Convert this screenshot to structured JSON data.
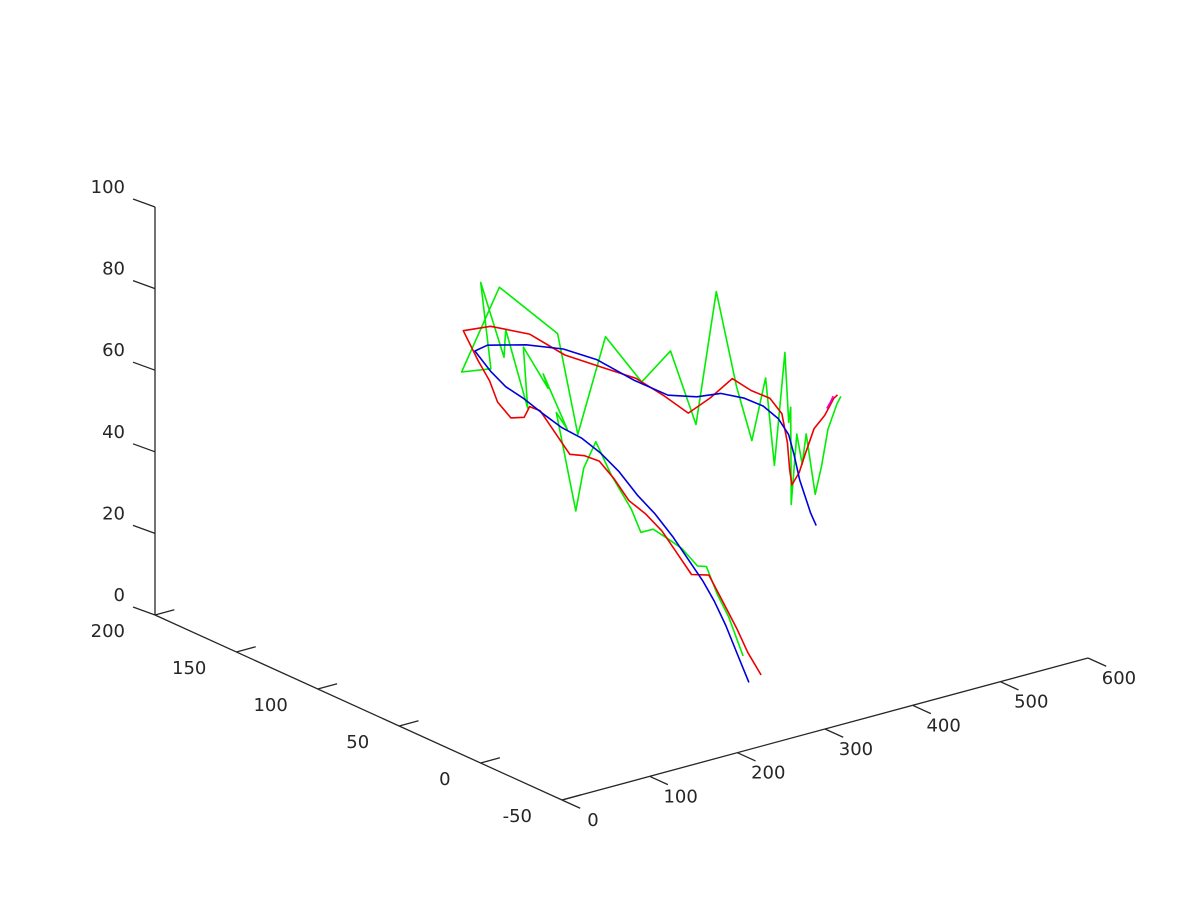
{
  "chart_data": {
    "type": "line",
    "dimensions": "3d",
    "grid": false,
    "legend": "none",
    "axes": {
      "x": {
        "range": [
          0,
          600
        ],
        "ticks": [
          0,
          100,
          200,
          300,
          400,
          500,
          600
        ]
      },
      "y": {
        "range": [
          -50,
          200
        ],
        "ticks": [
          -50,
          0,
          50,
          100,
          150,
          200
        ]
      },
      "z": {
        "range": [
          0,
          100
        ],
        "ticks": [
          0,
          20,
          40,
          60,
          80,
          100
        ]
      }
    },
    "series": [
      {
        "color": "#00ee00",
        "points": [
          [
            305,
            3,
            8
          ],
          [
            298,
            8,
            17
          ],
          [
            294,
            13,
            22
          ],
          [
            291,
            18,
            28
          ],
          [
            292,
            24,
            27
          ],
          [
            289,
            32,
            30
          ],
          [
            288,
            40,
            31
          ],
          [
            286,
            48,
            32
          ],
          [
            285,
            55,
            30
          ],
          [
            289,
            63,
            34
          ],
          [
            283,
            72,
            41
          ],
          [
            280,
            80,
            48
          ],
          [
            281,
            88,
            40
          ],
          [
            285,
            95,
            28
          ],
          [
            272,
            100,
            52
          ],
          [
            292,
            104,
            46
          ],
          [
            272,
            108,
            60
          ],
          [
            285,
            112,
            55
          ],
          [
            268,
            118,
            65
          ],
          [
            284,
            124,
            48
          ],
          [
            270,
            130,
            67
          ],
          [
            283,
            138,
            58
          ],
          [
            275,
            148,
            75
          ],
          [
            294,
            152,
            52
          ],
          [
            268,
            156,
            52
          ],
          [
            300,
            150,
            72
          ],
          [
            320,
            125,
            64
          ],
          [
            330,
            118,
            40
          ],
          [
            343,
            108,
            65
          ],
          [
            362,
            96,
            55
          ],
          [
            380,
            88,
            63
          ],
          [
            398,
            82,
            45
          ],
          [
            410,
            76,
            78
          ],
          [
            422,
            70,
            55
          ],
          [
            432,
            66,
            42
          ],
          [
            444,
            64,
            57
          ],
          [
            454,
            64,
            35
          ],
          [
            466,
            64,
            62
          ],
          [
            474,
            66,
            44
          ],
          [
            480,
            68,
            47
          ],
          [
            488,
            72,
            22
          ],
          [
            500,
            75,
            38
          ],
          [
            508,
            76,
            30
          ],
          [
            520,
            80,
            36
          ],
          [
            534,
            82,
            20
          ],
          [
            545,
            84,
            26
          ],
          [
            556,
            86,
            34
          ],
          [
            570,
            88,
            39
          ],
          [
            578,
            90,
            40
          ]
        ]
      },
      {
        "color": "#ee0000",
        "points": [
          [
            320,
            0,
            3
          ],
          [
            314,
            5,
            8
          ],
          [
            311,
            10,
            13
          ],
          [
            307,
            17,
            19
          ],
          [
            305,
            24,
            24
          ],
          [
            300,
            32,
            23
          ],
          [
            298,
            40,
            27
          ],
          [
            296,
            48,
            31
          ],
          [
            292,
            56,
            34
          ],
          [
            288,
            64,
            36
          ],
          [
            286,
            72,
            40
          ],
          [
            284,
            80,
            43
          ],
          [
            282,
            88,
            43
          ],
          [
            280,
            96,
            42
          ],
          [
            278,
            104,
            46
          ],
          [
            276,
            112,
            50
          ],
          [
            275,
            118,
            50
          ],
          [
            280,
            124,
            46
          ],
          [
            276,
            130,
            45
          ],
          [
            272,
            136,
            48
          ],
          [
            274,
            142,
            52
          ],
          [
            272,
            148,
            56
          ],
          [
            270,
            156,
            62
          ],
          [
            290,
            150,
            63
          ],
          [
            312,
            138,
            62
          ],
          [
            330,
            126,
            58
          ],
          [
            350,
            114,
            56
          ],
          [
            370,
            104,
            54
          ],
          [
            388,
            96,
            50
          ],
          [
            404,
            90,
            46
          ],
          [
            418,
            84,
            50
          ],
          [
            432,
            78,
            55
          ],
          [
            446,
            74,
            52
          ],
          [
            460,
            70,
            50
          ],
          [
            470,
            68,
            46
          ],
          [
            480,
            70,
            38
          ],
          [
            490,
            74,
            30
          ],
          [
            500,
            78,
            25
          ],
          [
            512,
            80,
            27
          ],
          [
            524,
            83,
            30
          ],
          [
            540,
            86,
            35
          ],
          [
            556,
            88,
            37
          ],
          [
            570,
            90,
            40
          ],
          [
            578,
            92,
            40
          ]
        ]
      },
      {
        "color": "#0000dd",
        "points": [
          [
            306,
            0,
            2
          ],
          [
            304,
            6,
            8
          ],
          [
            302,
            12,
            14
          ],
          [
            300,
            18,
            19
          ],
          [
            298,
            24,
            23
          ],
          [
            296,
            32,
            27
          ],
          [
            294,
            40,
            31
          ],
          [
            292,
            50,
            35
          ],
          [
            290,
            60,
            38
          ],
          [
            288,
            70,
            42
          ],
          [
            285,
            80,
            45
          ],
          [
            282,
            90,
            47
          ],
          [
            278,
            100,
            48
          ],
          [
            274,
            110,
            50
          ],
          [
            271,
            120,
            52
          ],
          [
            270,
            130,
            53
          ],
          [
            271,
            140,
            55
          ],
          [
            272,
            150,
            58
          ],
          [
            290,
            152,
            58
          ],
          [
            312,
            140,
            59
          ],
          [
            332,
            128,
            59
          ],
          [
            352,
            118,
            57
          ],
          [
            372,
            106,
            53
          ],
          [
            392,
            96,
            50
          ],
          [
            410,
            88,
            50
          ],
          [
            426,
            82,
            51
          ],
          [
            442,
            76,
            50
          ],
          [
            456,
            72,
            48
          ],
          [
            466,
            68,
            45
          ],
          [
            474,
            66,
            41
          ],
          [
            484,
            68,
            35
          ],
          [
            494,
            70,
            28
          ],
          [
            504,
            72,
            23
          ],
          [
            514,
            74,
            18
          ],
          [
            524,
            76,
            14
          ]
        ]
      },
      {
        "color": "#ee00ee",
        "points": [
          [
            562,
            90,
            38
          ],
          [
            568,
            91,
            39
          ],
          [
            573,
            92,
            40
          ]
        ]
      }
    ]
  }
}
